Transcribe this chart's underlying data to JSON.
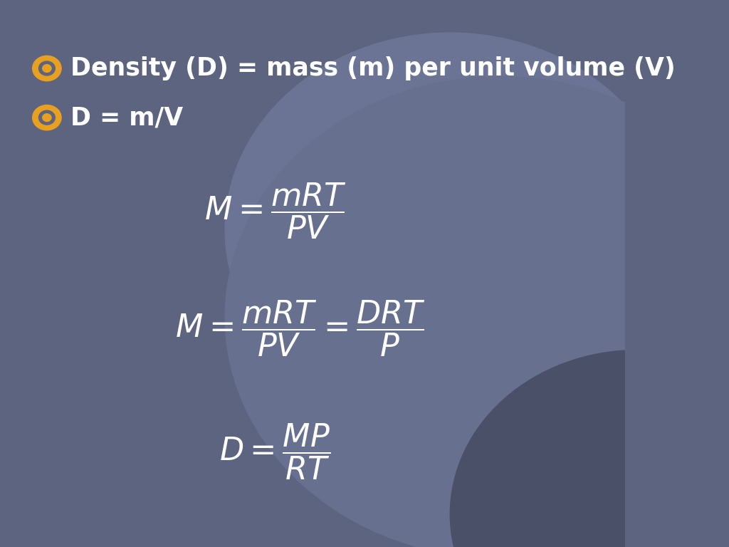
{
  "bg_color_main": "#5c6480",
  "bullet_color": "#e8a020",
  "text_color": "#ffffff",
  "formula_color": "#ffffff",
  "bullet1": "Density (D) = mass (m) per unit volume (V)",
  "bullet2": "D = m/V",
  "figsize": [
    10.24,
    7.68
  ],
  "dpi": 100
}
